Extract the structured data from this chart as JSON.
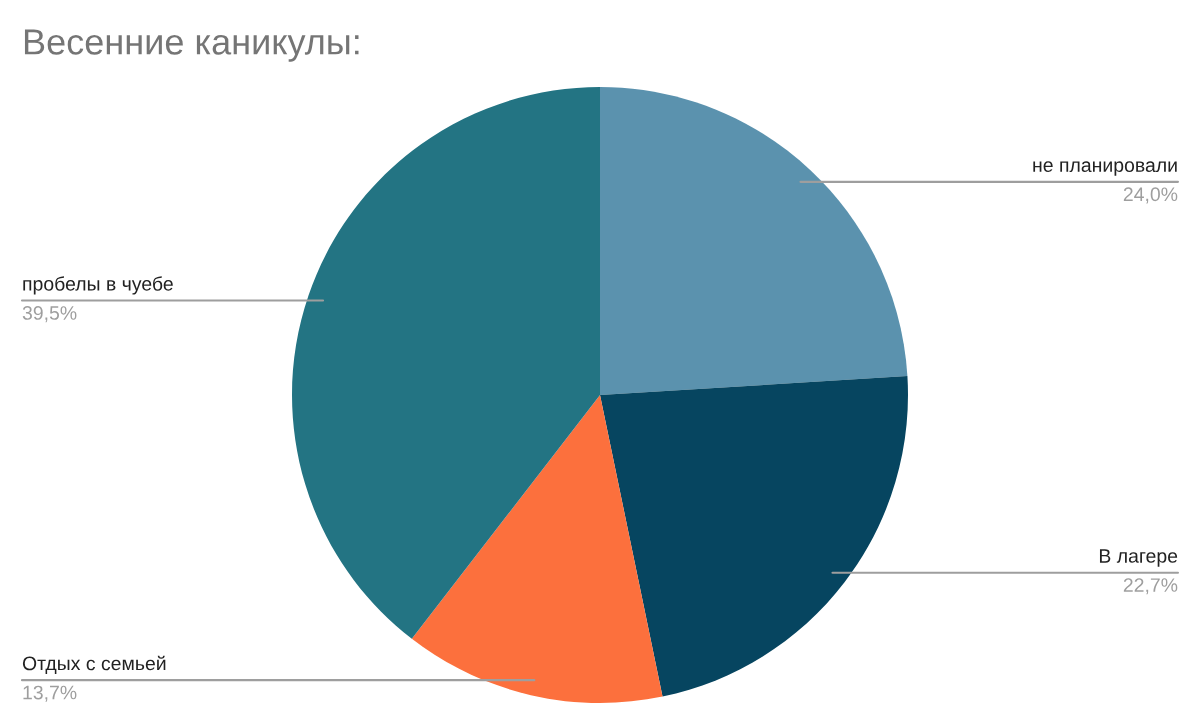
{
  "chart_data": {
    "type": "pie",
    "title": "Весенние каникулы:",
    "categories": [
      "не планировали",
      "В лагере",
      "Отдых с семьей",
      "пробелы в чуебе"
    ],
    "values": [
      24.0,
      22.7,
      13.7,
      39.5
    ],
    "colors": [
      "#5b92ae",
      "#064560",
      "#fc703d",
      "#237483"
    ],
    "value_labels": [
      "24,0%",
      "22,7%",
      "13,7%",
      "39,5%"
    ],
    "legend": false
  }
}
